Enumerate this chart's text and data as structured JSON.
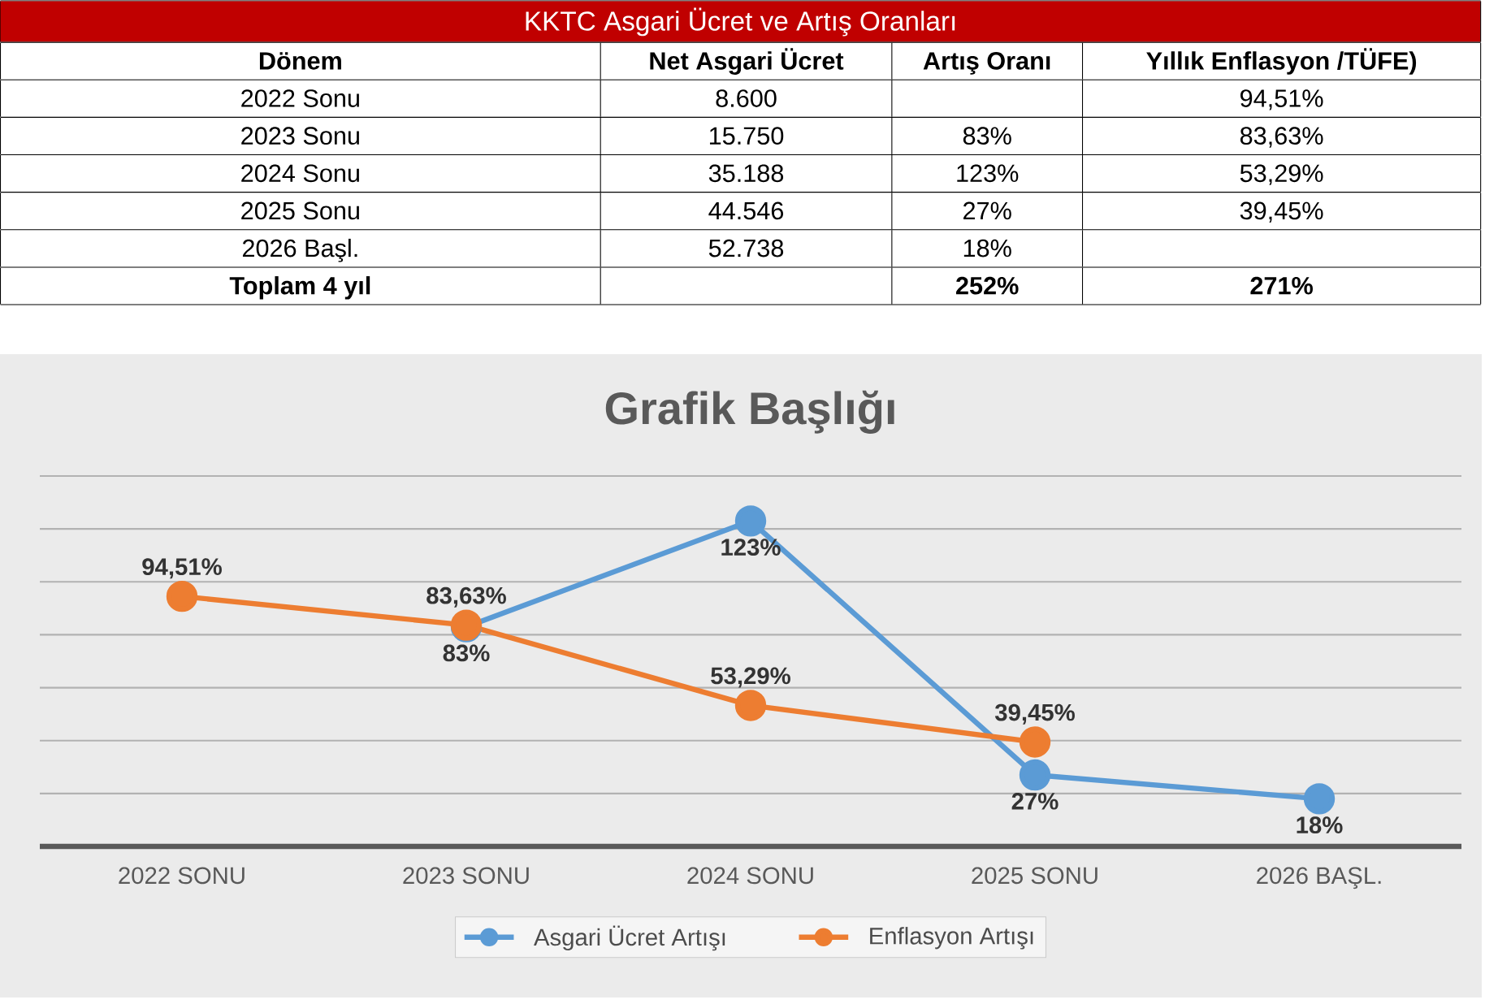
{
  "chart_data": [
    {
      "type": "other",
      "title": "KKTC Asgari Ücret ve Artış Oranları",
      "annotations": [
        "Dönem",
        "Net Asgari Ücret",
        "Artış Oranı",
        "Yıllık Enflasyon /TÜFE)",
        "2022 Sonu",
        "8.600",
        null,
        "94,51%",
        "2023 Sonu",
        "15.750",
        "83%",
        "83,63%",
        "2024 Sonu",
        "35.188",
        "123%",
        "53,29%",
        "2025 Sonu",
        "44.546",
        "27%",
        "39,45%",
        "2026 Başl.",
        "52.738",
        "18%",
        null,
        "Toplam 4 yıl",
        null,
        "252%",
        "271%"
      ]
    },
    {
      "type": "line",
      "title": "Grafik Başlığı",
      "categories": [
        "2022 SONU",
        "2023 SONU",
        "2024 SONU",
        "2025 SONU",
        "2026 BAŞL."
      ],
      "ylim": [
        0,
        140
      ],
      "yticks": [
        {
          "value": 0,
          "label": null
        },
        {
          "value": 20,
          "label": null
        },
        {
          "value": 40,
          "label": null
        },
        {
          "value": 60,
          "label": null
        },
        {
          "value": 80,
          "label": null
        },
        {
          "value": 100,
          "label": null
        },
        {
          "value": 120,
          "label": null
        },
        {
          "value": 140,
          "label": null
        }
      ],
      "tick_labels": "x",
      "grid": "y",
      "legend": "bottom",
      "marker": "circle",
      "series": [
        {
          "name": "Asgari Ücret Artışı",
          "color": "#5b9bd5",
          "values": [
            null,
            83,
            123,
            27,
            18
          ],
          "value_labels": [
            null,
            "83%",
            "123%",
            "27%",
            "18%"
          ]
        },
        {
          "name": "Enflasyon Artışı",
          "color": "#ed7d31",
          "values": [
            94.51,
            83.63,
            53.29,
            39.45,
            null
          ],
          "value_labels": [
            "94,51%",
            "83,63%",
            "53,29%",
            "39,45%",
            null
          ]
        }
      ]
    }
  ]
}
